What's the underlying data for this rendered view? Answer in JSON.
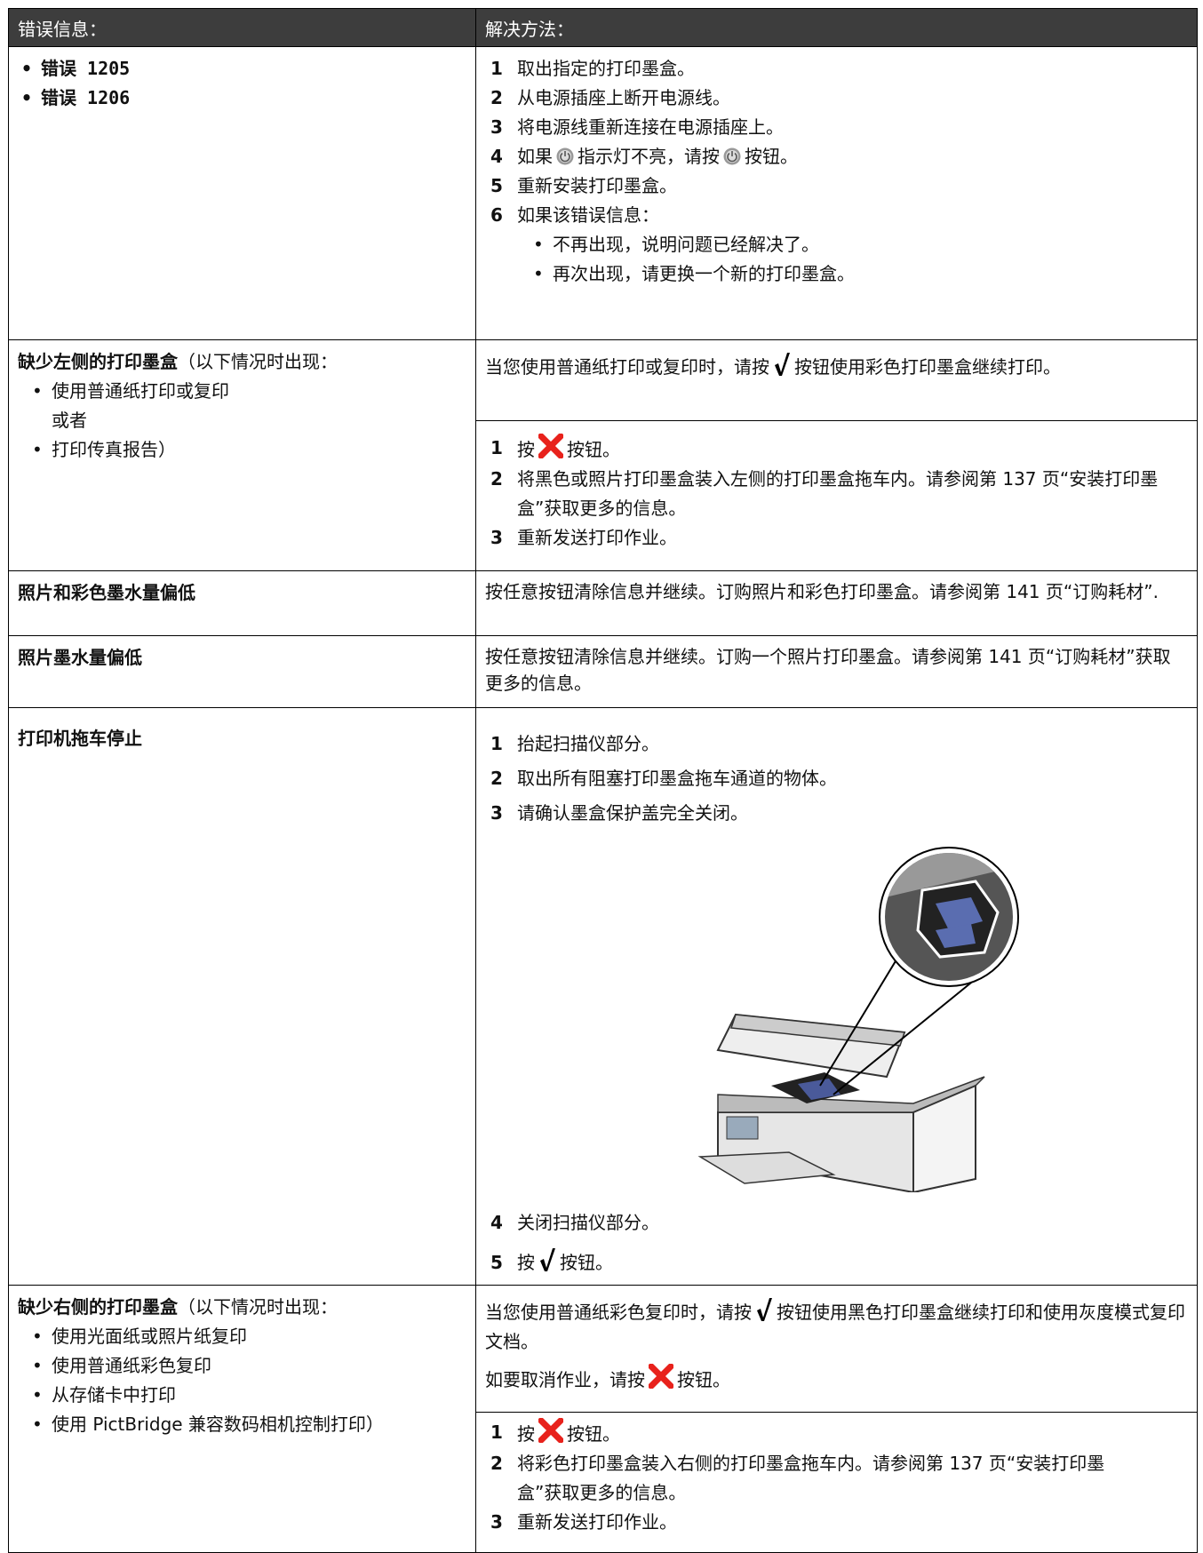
{
  "header": [
    "错误信息：",
    "解决方法："
  ],
  "rows": [
    {
      "errors": [
        "错误 1205",
        "错误 1206"
      ],
      "steps": [
        [
          "1",
          "取出指定的打印墨盒。"
        ],
        [
          "2",
          "从电源插座上断开电源线。"
        ],
        [
          "3",
          "将电源线重新连接在电源插座上。"
        ],
        [
          "4",
          "如果",
          "指示灯不亮，请按",
          "按钮。"
        ],
        [
          "5",
          "重新安装打印墨盒。"
        ],
        [
          "6",
          "如果该错误信息："
        ]
      ],
      "sub_bullets": [
        "不再出现，说明问题已经解决了。",
        "再次出现，请更换一个新的打印墨盒。"
      ]
    },
    {
      "title": "缺少左侧的打印墨盒",
      "note": "（以下情况时出现：",
      "bullets": [
        "使用普通纸打印或复印",
        "打印传真报告）"
      ],
      "or": "或者",
      "para": [
        "当您使用普通纸打印或复印时，请按",
        "按钮使用彩色打印墨盒继续打印。"
      ],
      "steps": [
        [
          "1",
          "按",
          "按钮。"
        ],
        [
          "2",
          "将黑色或照片打印墨盒装入左侧的打印墨盒拖车内。请参阅第 137 页“安装打印墨盒”获取更多的信息。"
        ],
        [
          "3",
          "重新发送打印作业。"
        ]
      ]
    },
    {
      "title": "照片和彩色墨水量偏低",
      "solution": "按任意按钮清除信息并继续。订购照片和彩色打印墨盒。请参阅第 141 页“订购耗材”."
    },
    {
      "title": "照片墨水量偏低",
      "solution": "按任意按钮清除信息并继续。订购一个照片打印墨盒。请参阅第 141 页“订购耗材”获取更多的信息。"
    },
    {
      "title": "打印机拖车停止",
      "steps": [
        [
          "1",
          "抬起扫描仪部分。"
        ],
        [
          "2",
          "取出所有阻塞打印墨盒拖车通道的物体。"
        ],
        [
          "3",
          "请确认墨盒保护盖完全关闭。"
        ],
        [
          "4",
          "关闭扫描仪部分。"
        ],
        [
          "5",
          "按",
          "按钮。"
        ]
      ]
    },
    {
      "title": "缺少右侧的打印墨盒",
      "note": "（以下情况时出现：",
      "bullets": [
        "使用光面纸或照片纸复印",
        "使用普通纸彩色复印",
        "从存储卡中打印",
        "使用 PictBridge 兼容数码相机控制打印）"
      ],
      "paras": [
        [
          "当您使用普通纸彩色复印时，请按",
          "按钮使用黑色打印墨盒继续打印和使用灰度模式复印文档。"
        ],
        [
          "如要取消作业，请按",
          "按钮。"
        ]
      ],
      "steps": [
        [
          "1",
          "按",
          "按钮。"
        ],
        [
          "2",
          "将彩色打印墨盒装入右侧的打印墨盒拖车内。请参阅第 137 页“安装打印墨盒”获取更多的信息。"
        ],
        [
          "3",
          "重新发送打印作业。"
        ]
      ]
    }
  ]
}
